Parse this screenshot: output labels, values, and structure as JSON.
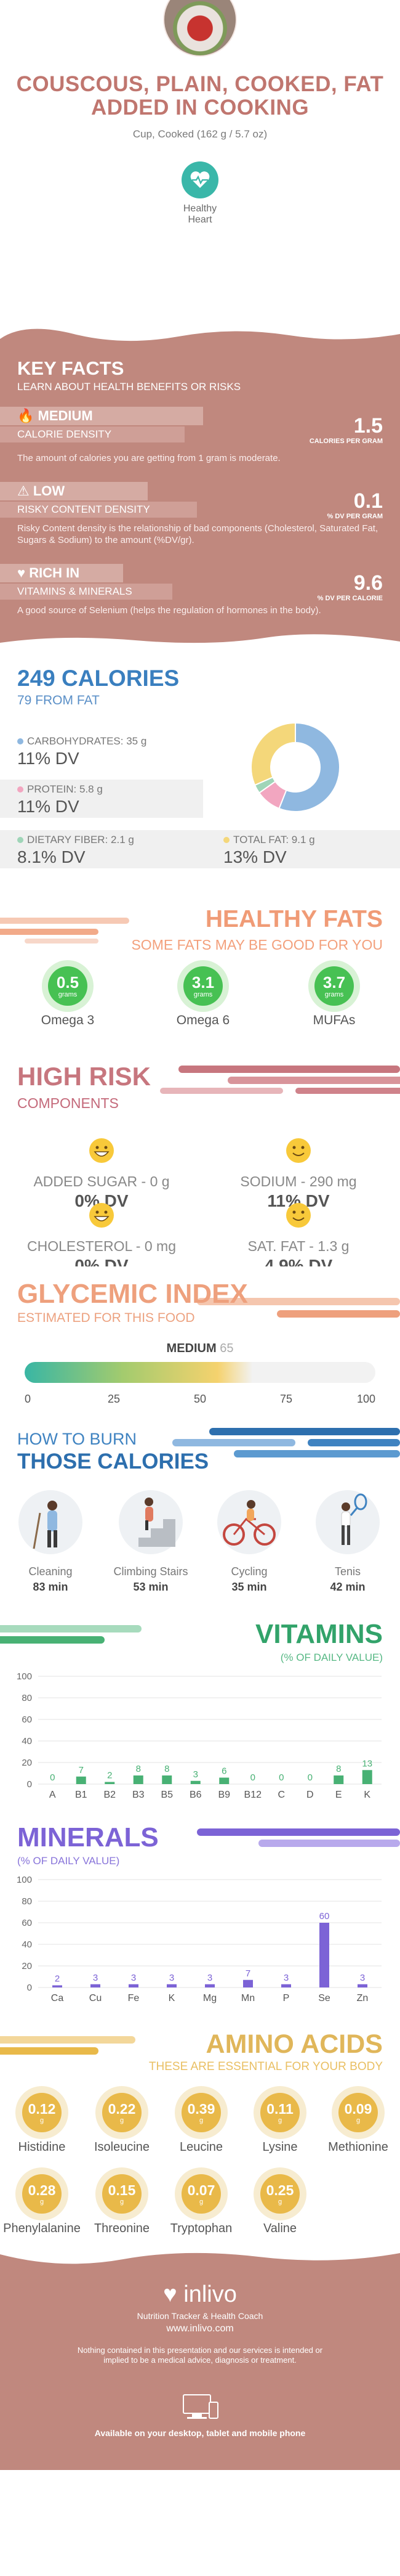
{
  "header": {
    "title": "COUSCOUS, PLAIN, COOKED, FAT ADDED IN COOKING",
    "serving": "Cup, Cooked (162 g / 5.7 oz)",
    "badge": [
      "Healthy",
      "Heart"
    ],
    "colors": {
      "title": "#c0766f",
      "badge": "#3ab7a9"
    }
  },
  "key_facts": {
    "title": "KEY FACTS",
    "subtitle": "LEARN ABOUT HEALTH BENEFITS OR RISKS",
    "items": [
      {
        "icon": "flame-icon",
        "level": "MEDIUM",
        "name": "CALORIE DENSITY",
        "value": "1.5",
        "unit": "CALORIES PER GRAM",
        "desc": "The amount of calories you are getting from 1 gram is moderate."
      },
      {
        "icon": "warning-icon",
        "level": "LOW",
        "name": "RISKY CONTENT DENSITY",
        "value": "0.1",
        "unit": "% DV PER GRAM",
        "desc": "Risky Content density is the relationship of bad components (Cholesterol, Saturated Fat, Sugars & Sodium) to the amount (%DV/gr)."
      },
      {
        "icon": "heart-icon",
        "level": "RICH  IN",
        "name": "VITAMINS & MINERALS",
        "value": "9.6",
        "unit": "% DV PER CALORIE",
        "desc": "A good source of Selenium (helps the regulation of hormones in the body)."
      }
    ]
  },
  "calories": {
    "title": "249 CALORIES",
    "subtitle": "79 FROM FAT",
    "macros": [
      {
        "label": "CARBOHYDRATES: 35 g",
        "dv": "11% DV",
        "color": "#8fb8e0"
      },
      {
        "label": "PROTEIN: 5.8 g",
        "dv": "11% DV",
        "color": "#f2a6c0"
      },
      {
        "label": "DIETARY FIBER: 2.1 g",
        "dv": "8.1% DV",
        "color": "#9fd5b8"
      },
      {
        "label": "TOTAL FAT: 9.1 g",
        "dv": "13% DV",
        "color": "#f4d77a"
      }
    ]
  },
  "healthy_fats": {
    "title": "HEALTHY FATS",
    "subtitle": "SOME FATS MAY BE GOOD FOR YOU",
    "unit": "grams",
    "items": [
      {
        "value": "0.5",
        "name": "Omega 3"
      },
      {
        "value": "3.1",
        "name": "Omega 6"
      },
      {
        "value": "3.7",
        "name": "MUFAs"
      }
    ]
  },
  "high_risk": {
    "title": "HIGH RISK",
    "subtitle": "COMPONENTS",
    "items": [
      {
        "label": "ADDED SUGAR - 0 g",
        "dv": "0% DV",
        "mood": "grinning"
      },
      {
        "label": "SODIUM - 290 mg",
        "dv": "11% DV",
        "mood": "smiling"
      },
      {
        "label": "CHOLESTEROL - 0 mg",
        "dv": "0% DV",
        "mood": "grinning"
      },
      {
        "label": "SAT. FAT - 1.3 g",
        "dv": "4.9% DV",
        "mood": "smiling"
      }
    ]
  },
  "glycemic": {
    "title": "GLYCEMIC INDEX",
    "subtitle": "ESTIMATED FOR THIS FOOD",
    "level": "MEDIUM",
    "value": "65",
    "ticks": [
      "0",
      "25",
      "50",
      "75",
      "100"
    ]
  },
  "burn": {
    "title1": "HOW TO BURN",
    "title2": "THOSE CALORIES",
    "items": [
      {
        "name": "Cleaning",
        "minutes": "83 min",
        "icon": "cleaning-icon"
      },
      {
        "name": "Climbing Stairs",
        "minutes": "53 min",
        "icon": "stairs-icon"
      },
      {
        "name": "Cycling",
        "minutes": "35 min",
        "icon": "cycling-icon"
      },
      {
        "name": "Tenis",
        "minutes": "42 min",
        "icon": "tennis-icon"
      }
    ]
  },
  "vitamins": {
    "title": "VITAMINS",
    "subtitle": "(% OF DAILY VALUE)",
    "color": "#48b174"
  },
  "minerals": {
    "title": "MINERALS",
    "subtitle": "(% OF DAILY VALUE)",
    "color": "#7c63d6"
  },
  "amino": {
    "title": "AMINO ACIDS",
    "subtitle": "THESE ARE ESSENTIAL FOR YOUR BODY",
    "unit": "g",
    "items": [
      {
        "value": "0.12",
        "name": "Histidine"
      },
      {
        "value": "0.22",
        "name": "Isoleucine"
      },
      {
        "value": "0.39",
        "name": "Leucine"
      },
      {
        "value": "0.11",
        "name": "Lysine"
      },
      {
        "value": "0.09",
        "name": "Methionine"
      },
      {
        "value": "0.28",
        "name": "Phenylalanine"
      },
      {
        "value": "0.15",
        "name": "Threonine"
      },
      {
        "value": "0.07",
        "name": "Tryptophan"
      },
      {
        "value": "0.25",
        "name": "Valine"
      }
    ]
  },
  "footer": {
    "logo": "inlivo",
    "tagline": "Nutrition Tracker & Health Coach",
    "url": "www.inlivo.com",
    "disclaimer": "Nothing contained in this presentation and our services is intended or implied to be a medical advice, diagnosis or treatment.",
    "available": "Available on your desktop, tablet and mobile phone"
  },
  "chart_data": [
    {
      "type": "pie",
      "title": "",
      "categories": [
        "Carbohydrates",
        "Protein",
        "Dietary Fiber",
        "Total Fat"
      ],
      "values": [
        140,
        23,
        8,
        79
      ],
      "colors": [
        "#8fb8e0",
        "#f2a6c0",
        "#9fd5b8",
        "#f4d77a"
      ]
    },
    {
      "type": "bar",
      "title": "VITAMINS",
      "categories": [
        "A",
        "B1",
        "B2",
        "B3",
        "B5",
        "B6",
        "B9",
        "B12",
        "C",
        "D",
        "E",
        "K"
      ],
      "values": [
        0,
        7,
        2,
        8,
        8,
        3,
        6,
        0,
        0,
        0,
        8,
        13
      ],
      "ylim": [
        0,
        100
      ],
      "yticks": [
        0,
        20,
        40,
        60,
        80,
        100
      ]
    },
    {
      "type": "bar",
      "title": "MINERALS",
      "categories": [
        "Ca",
        "Cu",
        "Fe",
        "K",
        "Mg",
        "Mn",
        "P",
        "Se",
        "Zn"
      ],
      "values": [
        2,
        3,
        3,
        3,
        3,
        7,
        3,
        60,
        3
      ],
      "ylim": [
        0,
        100
      ],
      "yticks": [
        0,
        20,
        40,
        60,
        80,
        100
      ]
    }
  ]
}
